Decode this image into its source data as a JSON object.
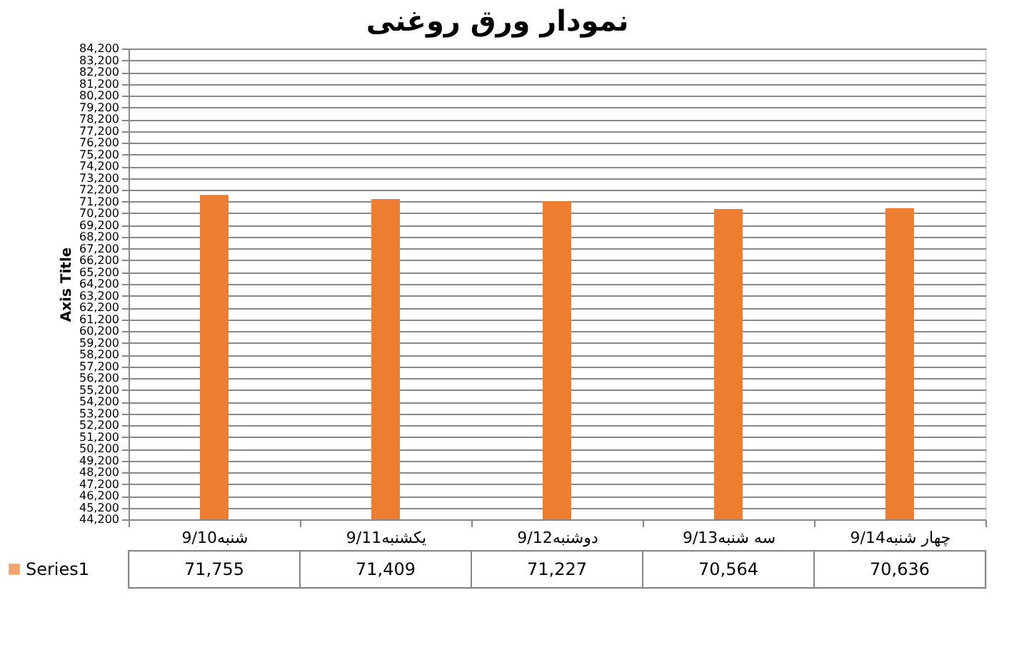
{
  "chart_data": {
    "type": "bar",
    "title": "نمودار ورق روغنی",
    "ylabel": "Axis Title",
    "categories": [
      "9/10شنبه",
      "9/11یکشنبه",
      "9/12دوشنبه",
      "9/13سه شنبه",
      "9/14چهار شنبه"
    ],
    "series": [
      {
        "name": "Series1",
        "color": "#ed7d31",
        "values": [
          71755,
          71409,
          71227,
          70564,
          70636
        ],
        "value_labels": [
          "71,755",
          "71,409",
          "71,227",
          "70,564",
          "70,636"
        ]
      }
    ],
    "ylim": [
      44200,
      84200
    ],
    "yticks": [
      {
        "value": 44200,
        "label": "44,200"
      },
      {
        "value": 45200,
        "label": "45,200"
      },
      {
        "value": 46200,
        "label": "46,200"
      },
      {
        "value": 47200,
        "label": "47,200"
      },
      {
        "value": 48200,
        "label": "48,200"
      },
      {
        "value": 49200,
        "label": "49,200"
      },
      {
        "value": 50200,
        "label": "50,200"
      },
      {
        "value": 51200,
        "label": "51,200"
      },
      {
        "value": 52200,
        "label": "52,200"
      },
      {
        "value": 53200,
        "label": "53,200"
      },
      {
        "value": 54200,
        "label": "54,200"
      },
      {
        "value": 55200,
        "label": "55,200"
      },
      {
        "value": 56200,
        "label": "56,200"
      },
      {
        "value": 57200,
        "label": "57,200"
      },
      {
        "value": 58200,
        "label": "58,200"
      },
      {
        "value": 59200,
        "label": "59,200"
      },
      {
        "value": 60200,
        "label": "60,200"
      },
      {
        "value": 61200,
        "label": "61,200"
      },
      {
        "value": 62200,
        "label": "62,200"
      },
      {
        "value": 63200,
        "label": "63,200"
      },
      {
        "value": 64200,
        "label": "64,200"
      },
      {
        "value": 65200,
        "label": "65,200"
      },
      {
        "value": 66200,
        "label": "66,200"
      },
      {
        "value": 67200,
        "label": "67,200"
      },
      {
        "value": 68200,
        "label": "68,200"
      },
      {
        "value": 69200,
        "label": "69,200"
      },
      {
        "value": 70200,
        "label": "70,200"
      },
      {
        "value": 71200,
        "label": "71,200"
      },
      {
        "value": 72200,
        "label": "72,200"
      },
      {
        "value": 73200,
        "label": "73,200"
      },
      {
        "value": 74200,
        "label": "74,200"
      },
      {
        "value": 75200,
        "label": "75,200"
      },
      {
        "value": 76200,
        "label": "76,200"
      },
      {
        "value": 77200,
        "label": "77,200"
      },
      {
        "value": 78200,
        "label": "78,200"
      },
      {
        "value": 79200,
        "label": "79,200"
      },
      {
        "value": 80200,
        "label": "80,200"
      },
      {
        "value": 81200,
        "label": "81,200"
      },
      {
        "value": 82200,
        "label": "82,200"
      },
      {
        "value": 83200,
        "label": "83,200"
      },
      {
        "value": 84200,
        "label": "84,200"
      }
    ],
    "grid": "y",
    "legend": "bottom"
  }
}
